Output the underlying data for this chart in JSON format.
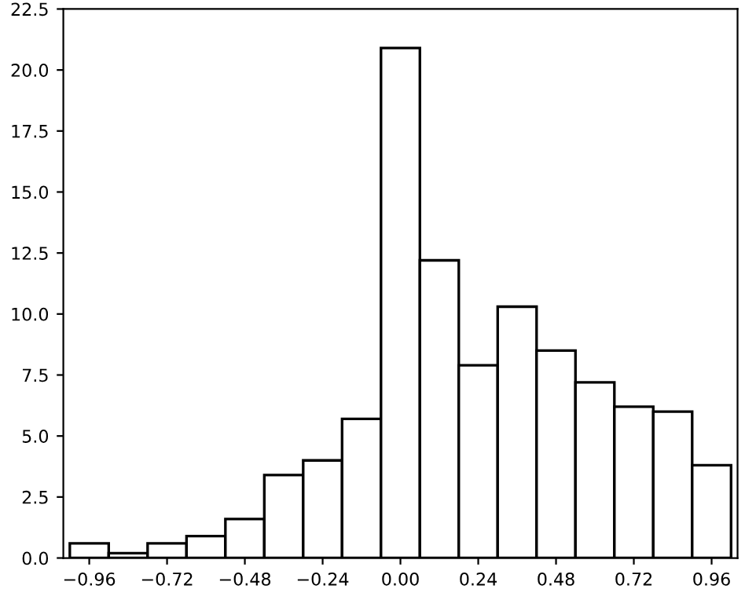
{
  "chart_data": {
    "type": "histogram",
    "bins": [
      -1.02,
      -0.9,
      -0.78,
      -0.66,
      -0.54,
      -0.42,
      -0.3,
      -0.18,
      -0.06,
      0.06,
      0.18,
      0.3,
      0.42,
      0.54,
      0.66,
      0.78,
      0.9,
      1.02
    ],
    "values": [
      0.6,
      0.2,
      0.6,
      0.9,
      1.6,
      3.4,
      4.0,
      5.7,
      20.9,
      12.2,
      7.9,
      10.3,
      8.5,
      7.2,
      6.2,
      6.0,
      3.8
    ],
    "color": "#ffffff",
    "xlim": [
      -1.04,
      1.04
    ],
    "xticks": [
      {
        "value": -0.96,
        "label": "−0.96"
      },
      {
        "value": -0.72,
        "label": "−0.72"
      },
      {
        "value": -0.48,
        "label": "−0.48"
      },
      {
        "value": -0.24,
        "label": "−0.24"
      },
      {
        "value": 0,
        "label": "0.00"
      },
      {
        "value": 0.24,
        "label": "0.24"
      },
      {
        "value": 0.48,
        "label": "0.48"
      },
      {
        "value": 0.72,
        "label": "0.72"
      },
      {
        "value": 0.96,
        "label": "0.96"
      }
    ],
    "ylim": [
      0,
      22.5
    ],
    "yticks": [
      {
        "value": 0,
        "label": "0.0"
      },
      2.5,
      {
        "value": 5,
        "label": "5.0"
      },
      7.5,
      {
        "value": 10,
        "label": "10.0"
      },
      12.5,
      {
        "value": 15,
        "label": "15.0"
      },
      17.5,
      {
        "value": 20,
        "label": "20.0"
      },
      22.5
    ],
    "grid": false
  }
}
